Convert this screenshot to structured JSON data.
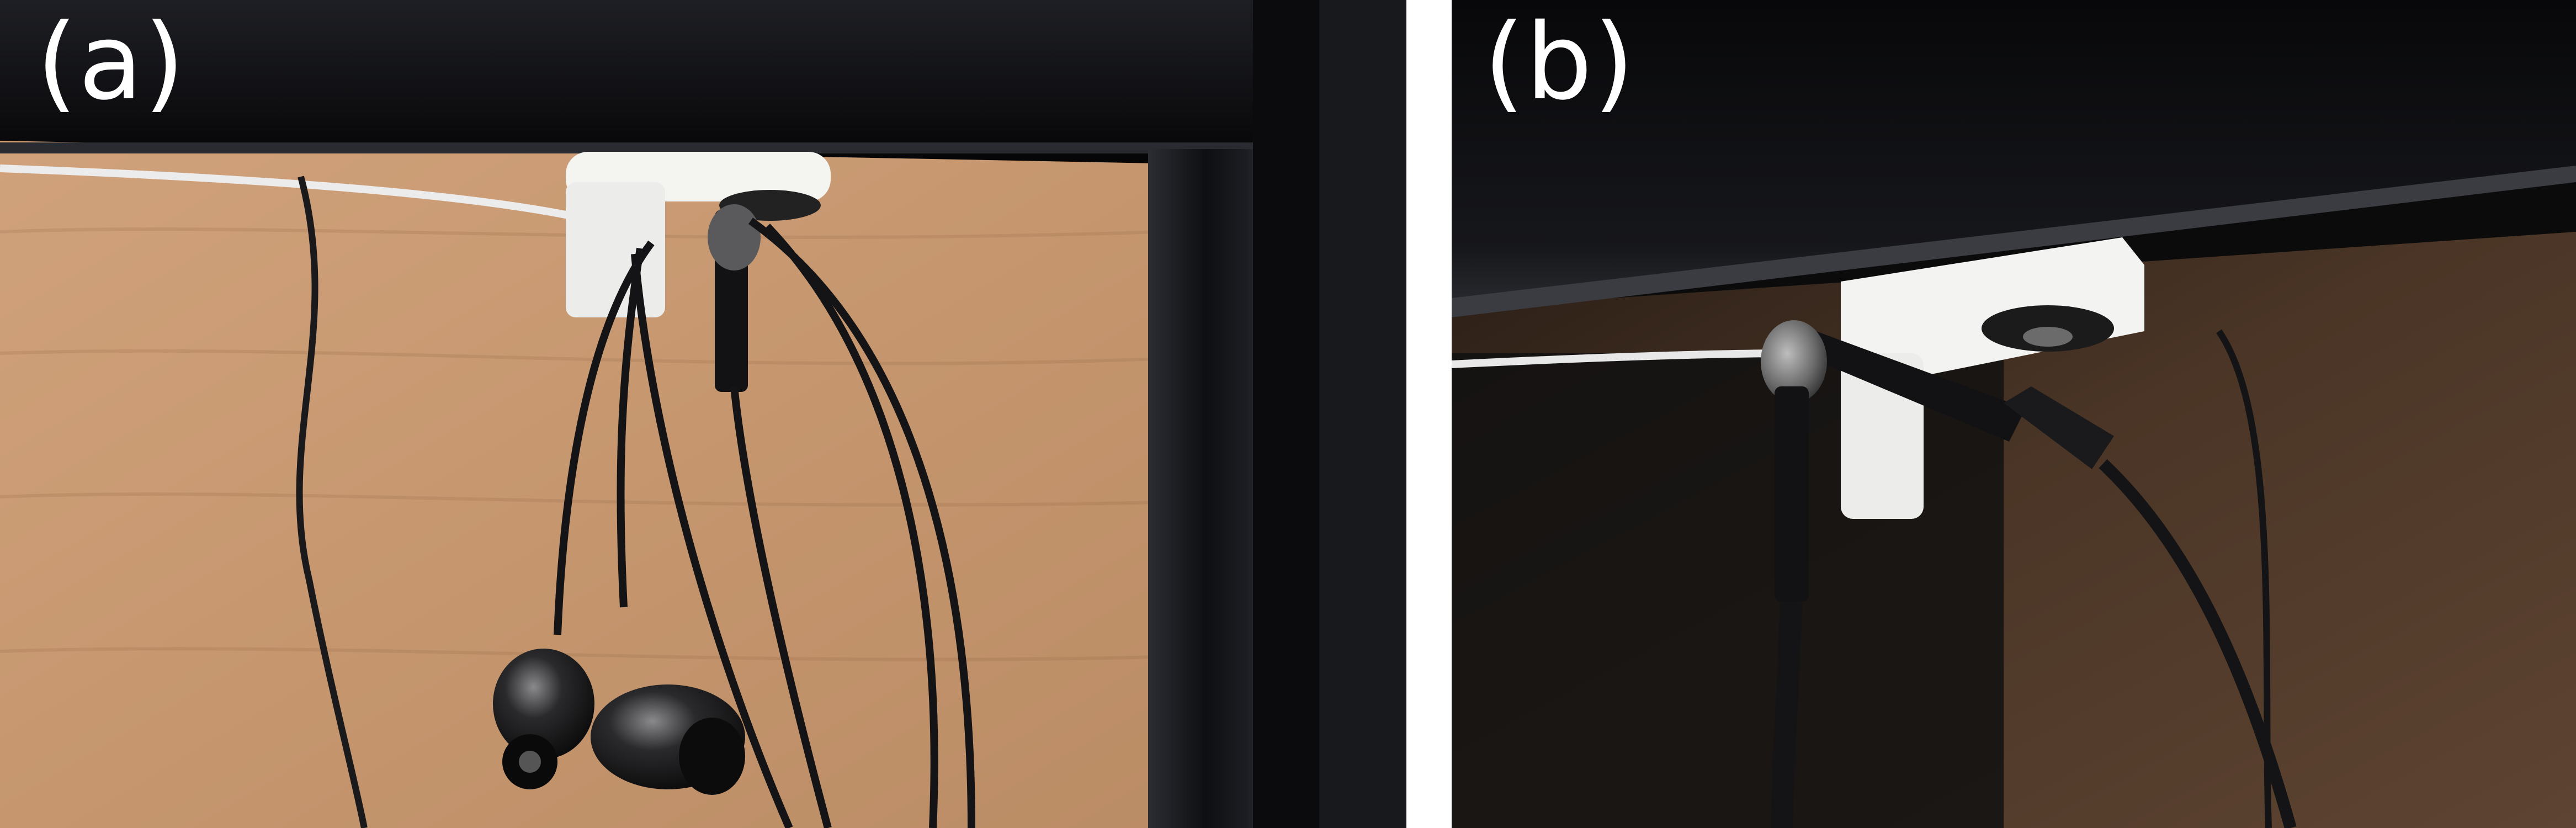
{
  "figure": {
    "panels": [
      {
        "label": "(a)"
      },
      {
        "label": "(b)"
      }
    ]
  },
  "colors": {
    "separator": "#ffffff",
    "label_text": "#ffffff",
    "desk_top": "#111114",
    "wood": "#c89a74",
    "mount": "#f2f2ef",
    "cable": "#151517"
  }
}
